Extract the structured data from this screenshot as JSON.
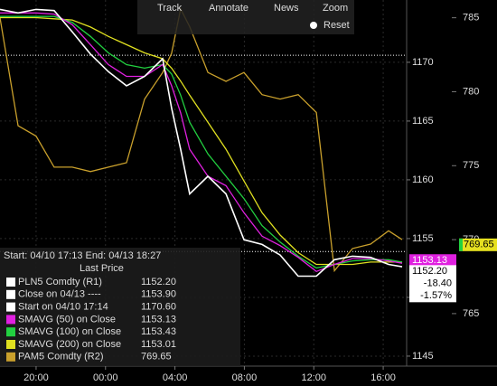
{
  "toolbar": {
    "buttons": [
      "Track",
      "Annotate",
      "News",
      "Zoom"
    ],
    "reset": "Reset"
  },
  "chart_data": {
    "type": "line",
    "header": "Start: 04/10 17:13 End: 04/13 18:27",
    "legend_title": "Last Price",
    "x": [
      -2.08,
      -1.04,
      0,
      1.04,
      2.08,
      3.13,
      4.17,
      5.21,
      6.25,
      7.29,
      7.81,
      8.33,
      8.85,
      9.9,
      10.94,
      11.98,
      13.02,
      14.06,
      15.1,
      16.15,
      17.19,
      18.23,
      19.27,
      20.31,
      21.09
    ],
    "xlim": [
      -2.08,
      21.35
    ],
    "xticks": [
      {
        "value": 0,
        "label": "20:00"
      },
      {
        "value": 4,
        "label": "00:00"
      },
      {
        "value": 8,
        "label": "04:00"
      },
      {
        "value": 12,
        "label": "08:00"
      },
      {
        "value": 16,
        "label": "12:00"
      },
      {
        "value": 20,
        "label": "16:00"
      }
    ],
    "ylim": [
      1144.15,
      1175.3
    ],
    "yticks": [
      1145,
      1150,
      1155,
      1160,
      1165,
      1170
    ],
    "y2lim": [
      761.45,
      786.2
    ],
    "y2ticks": [
      765,
      770,
      775,
      780,
      785
    ],
    "grid": true,
    "series": [
      {
        "name": "PLN5 Comdty  (R1)",
        "color": "#ffffff",
        "legend_value": 1152.2,
        "legend_label": "1152.20",
        "values": [
          1174.5,
          1174.2,
          1174.5,
          1174.4,
          1172.6,
          1170.7,
          1169.2,
          1168.0,
          1168.8,
          1170.3,
          1166.1,
          1162.6,
          1158.8,
          1160.3,
          1158.8,
          1154.9,
          1154.5,
          1153.6,
          1151.8,
          1151.8,
          1153.2,
          1153.5,
          1153.4,
          1152.8,
          1152.6
        ]
      },
      {
        "name": "SMAVG (50) on Close",
        "color": "#e020e0",
        "legend_value": 1153.13,
        "legend_label": "1153.13",
        "values": [
          1174.2,
          1174.2,
          1174.2,
          1174.1,
          1173.2,
          1171.5,
          1169.8,
          1168.8,
          1168.8,
          1169.8,
          1168.0,
          1165.7,
          1162.6,
          1160.3,
          1159.5,
          1157.2,
          1155.2,
          1154.4,
          1153.4,
          1152.2,
          1152.8,
          1153.3,
          1153.3,
          1153.1,
          1152.9
        ]
      },
      {
        "name": "SMAVG (100) on Close",
        "color": "#22d040",
        "legend_value": 1153.43,
        "legend_label": "1153.43",
        "values": [
          1173.9,
          1173.9,
          1173.9,
          1173.9,
          1173.4,
          1172.2,
          1170.8,
          1169.8,
          1169.5,
          1169.8,
          1169.0,
          1167.2,
          1164.9,
          1162.2,
          1160.3,
          1158.4,
          1156.1,
          1154.7,
          1153.5,
          1152.5,
          1152.8,
          1153.1,
          1153.2,
          1153.2,
          1153.0
        ]
      },
      {
        "name": "SMAVG (200) on Close",
        "color": "#e0e020",
        "legend_value": 1153.01,
        "legend_label": "1153.01",
        "values": [
          1173.8,
          1173.8,
          1173.8,
          1173.7,
          1173.6,
          1173.0,
          1172.2,
          1171.5,
          1170.8,
          1170.3,
          1169.5,
          1168.4,
          1167.2,
          1164.9,
          1162.6,
          1159.9,
          1157.2,
          1155.3,
          1153.8,
          1152.8,
          1152.8,
          1152.8,
          1153.0,
          1153.0,
          1153.0
        ]
      },
      {
        "name": "PAM5 Comdty  (R2)",
        "color": "#c9a02c",
        "axis": "y2",
        "legend_value": 769.65,
        "legend_label": "769.65",
        "values": [
          785.0,
          777.7,
          777.0,
          774.9,
          774.9,
          774.6,
          774.9,
          775.2,
          779.5,
          781.3,
          782.6,
          785.6,
          784.4,
          781.3,
          780.7,
          781.3,
          779.8,
          779.5,
          779.8,
          778.6,
          767.9,
          769.4,
          769.7,
          770.6,
          770.0
        ]
      }
    ],
    "reference_lines": [
      {
        "text": "Close on 04/13 ----",
        "value": 1153.9,
        "label": "1153.90"
      },
      {
        "text": "Start on 04/10 17:14",
        "value": 1170.6,
        "label": "1170.60"
      }
    ],
    "change_labels": [
      "-18.40",
      "-1.57%"
    ]
  }
}
